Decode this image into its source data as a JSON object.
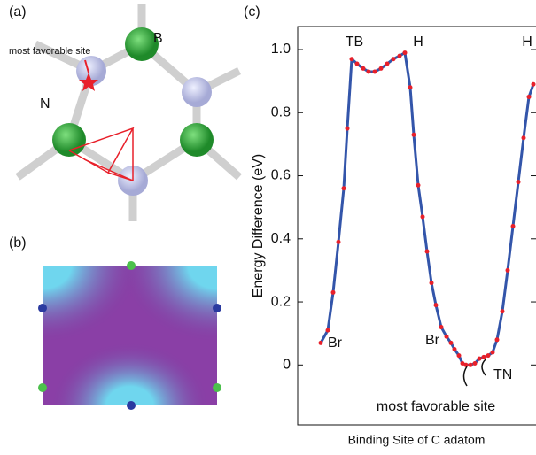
{
  "figure": {
    "panel_a": {
      "label": "(a)",
      "atom_b": "B",
      "atom_n": "N",
      "site": "most favorable site"
    },
    "panel_b": {
      "label": "(b)"
    }
  },
  "chart_data": {
    "type": "line",
    "panel_label": "(c)",
    "ylabel": "Energy Difference (eV)",
    "xlabel": "Binding Site of C adatom",
    "color": "#3355aa",
    "marker_color": "#e8202a",
    "x": [
      26,
      34,
      40,
      46,
      52,
      56,
      61,
      67,
      74,
      80,
      87,
      94,
      101,
      108,
      115,
      121,
      127,
      131,
      136,
      141,
      146,
      151,
      156,
      162,
      168,
      173,
      177,
      182,
      186,
      190,
      195,
      200,
      205,
      210,
      215,
      220,
      225,
      231,
      237,
      243,
      249,
      255,
      261,
      266
    ],
    "values": [
      0.07,
      0.11,
      0.23,
      0.39,
      0.56,
      0.75,
      0.97,
      0.955,
      0.94,
      0.93,
      0.93,
      0.94,
      0.955,
      0.97,
      0.98,
      0.99,
      0.88,
      0.73,
      0.57,
      0.47,
      0.36,
      0.26,
      0.19,
      0.12,
      0.09,
      0.07,
      0.05,
      0.03,
      0.005,
      0,
      0,
      0.005,
      0.02,
      0.025,
      0.03,
      0.04,
      0.08,
      0.17,
      0.3,
      0.44,
      0.58,
      0.72,
      0.85,
      0.89
    ],
    "xlim": [
      0,
      269
    ],
    "ylim": [
      -0.19,
      1.073
    ],
    "yticks": [
      0,
      0.2,
      0.4,
      0.6,
      0.8,
      {
        "value": 1,
        "label": "1.0"
      }
    ],
    "annotations": [
      "TB",
      "H",
      "H",
      "Br",
      "Br",
      "TN",
      "most favorable site"
    ]
  }
}
